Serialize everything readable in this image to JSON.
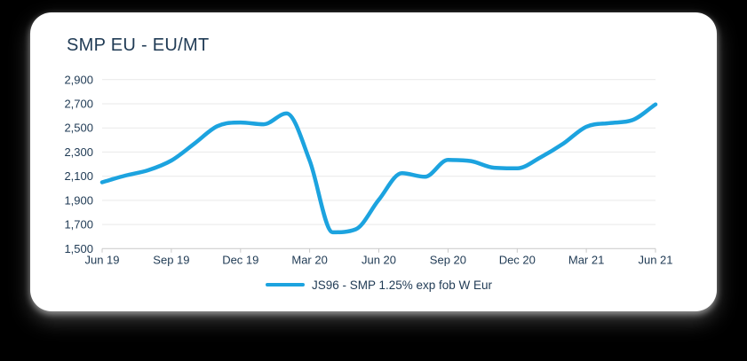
{
  "page": {
    "background_color": "#000000",
    "card_background_color": "#ffffff"
  },
  "chart_data": {
    "type": "line",
    "title": "SMP EU - EU/MT",
    "x": [
      "Jun 19",
      "Jul 19",
      "Aug 19",
      "Sep 19",
      "Oct 19",
      "Nov 19",
      "Dec 19",
      "Jan 20",
      "Feb 20",
      "Mar 20",
      "Apr 20",
      "May 20",
      "Jun 20",
      "Jul 20",
      "Aug 20",
      "Sep 20",
      "Oct 20",
      "Nov 20",
      "Dec 20",
      "Jan 21",
      "Feb 21",
      "Mar 21",
      "Apr 21",
      "May 21",
      "Jun 21"
    ],
    "series": [
      {
        "name": "JS96 - SMP 1.25% exp fob W Eur",
        "color": "#1CA3DF",
        "values": [
          2050,
          2105,
          2150,
          2230,
          2370,
          2515,
          2545,
          2530,
          2620,
          2230,
          1635,
          1660,
          1905,
          2125,
          2095,
          2235,
          2225,
          2170,
          2165,
          2255,
          2370,
          2510,
          2540,
          2565,
          2695
        ]
      }
    ],
    "x_tick_labels": [
      "Jun 19",
      "Sep 19",
      "Dec 19",
      "Mar 20",
      "Jun 20",
      "Sep 20",
      "Dec 20",
      "Mar 21",
      "Jun 21"
    ],
    "y_ticks": [
      {
        "value": 2900,
        "label": "2,900"
      },
      {
        "value": 2700,
        "label": "2,700"
      },
      {
        "value": 2500,
        "label": "2,500"
      },
      {
        "value": 2300,
        "label": "2,300"
      },
      {
        "value": 2100,
        "label": "2,100"
      },
      {
        "value": 1900,
        "label": "1,900"
      },
      {
        "value": 1700,
        "label": "1,700"
      },
      {
        "value": 1500,
        "label": "1,500"
      }
    ],
    "ylim": [
      1500,
      2900
    ],
    "xlabel": "",
    "ylabel": "",
    "grid": "horizontal",
    "legend_position": "bottom",
    "text_color": "#1f3a54",
    "grid_color": "#e9e9e9",
    "axis_color": "#c9c9c9"
  }
}
